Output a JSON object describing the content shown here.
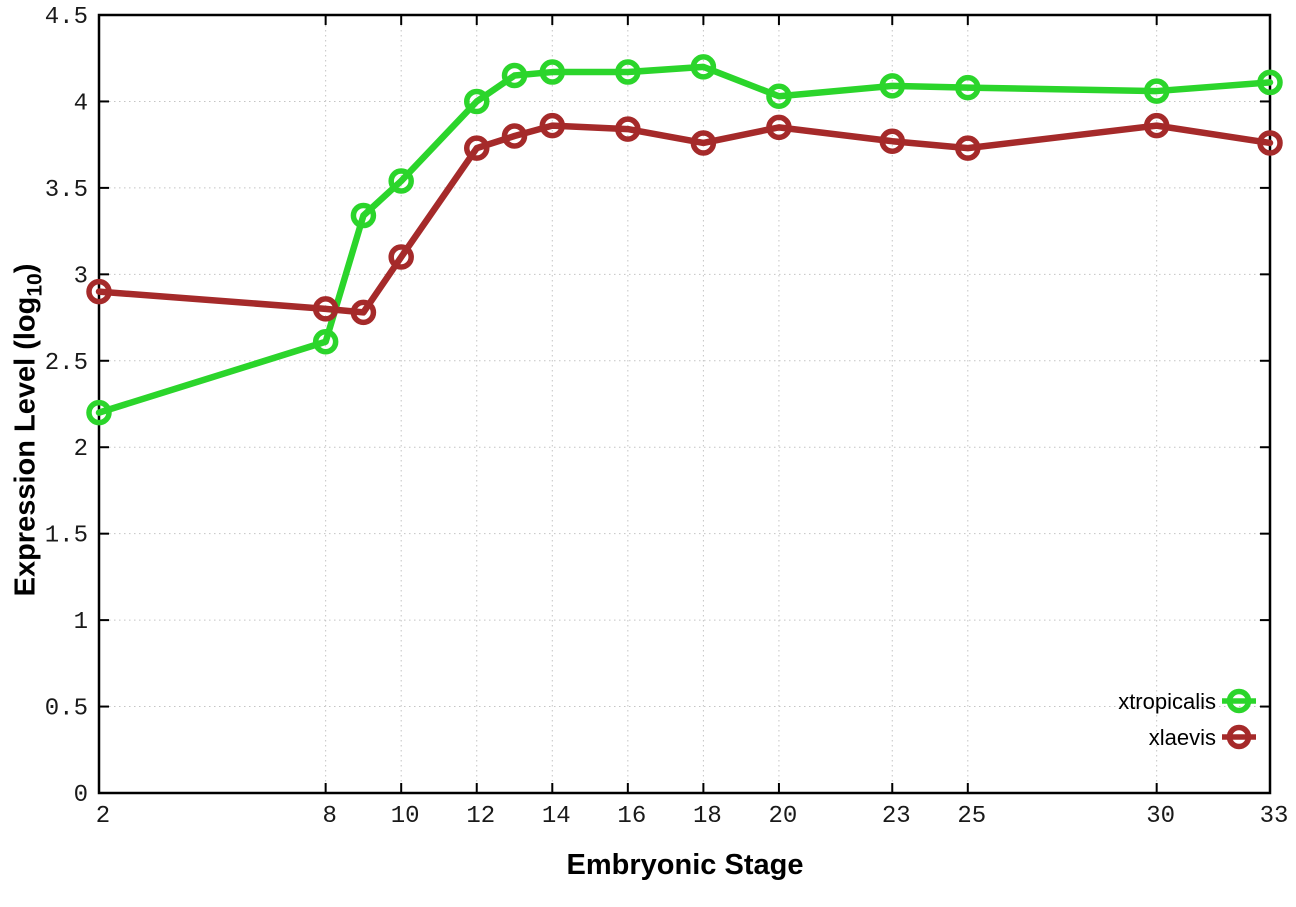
{
  "chart_data": {
    "type": "line",
    "title": "",
    "xlabel": "Embryonic Stage",
    "ylabel": "Expression Level (log10)",
    "ylabel_base": "Expression Level (log",
    "ylabel_sub": "10",
    "ylabel_close": ")",
    "xlim": [
      2,
      33
    ],
    "ylim": [
      0,
      4.5
    ],
    "x_ticks": [
      2,
      8,
      10,
      12,
      14,
      16,
      18,
      20,
      23,
      25,
      30,
      33
    ],
    "y_ticks": [
      0,
      0.5,
      1,
      1.5,
      2,
      2.5,
      3,
      3.5,
      4,
      4.5
    ],
    "grid": true,
    "legend_position": "bottom-right",
    "x": [
      2,
      8,
      9,
      10,
      12,
      13,
      14,
      16,
      18,
      20,
      23,
      25,
      30,
      33
    ],
    "series": [
      {
        "name": "xtropicalis",
        "color": "#2bd52b",
        "values": [
          2.2,
          2.61,
          3.34,
          3.54,
          4.0,
          4.15,
          4.17,
          4.17,
          4.2,
          4.03,
          4.09,
          4.08,
          4.06,
          4.11
        ]
      },
      {
        "name": "xlaevis",
        "color": "#a52a2a",
        "values": [
          2.9,
          2.8,
          2.78,
          3.1,
          3.73,
          3.8,
          3.86,
          3.84,
          3.76,
          3.85,
          3.77,
          3.73,
          3.86,
          3.76
        ]
      }
    ],
    "colors": {
      "background": "#ffffff",
      "grid": "#c4c4c4",
      "axis": "#000000",
      "tick_label": "#1a1a1a",
      "legend_text": "#000000"
    }
  }
}
